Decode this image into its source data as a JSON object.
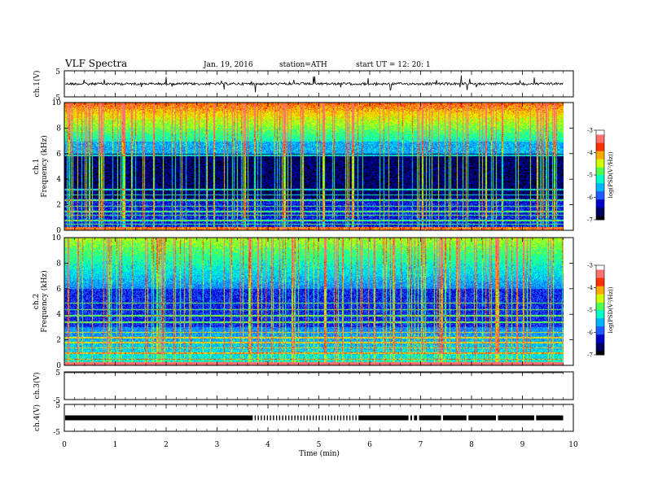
{
  "header": {
    "title": "VLF  Spectra",
    "date": "Jan. 19, 2016",
    "station": "station=ATH",
    "start": "start  UT  =    12: 20: 1"
  },
  "colors": {
    "palette": [
      "#000000",
      "#000060",
      "#0000c8",
      "#1e5aff",
      "#00b4ff",
      "#00ffc8",
      "#50ff50",
      "#d2ff00",
      "#ffaa00",
      "#ff3000",
      "#ff7070",
      "#ffffff"
    ]
  },
  "chart_data": [
    {
      "type": "line",
      "name": "ch1-waveform",
      "ylabel": "ch.1(V)",
      "ylim": [
        -5,
        5
      ],
      "y_ticks": [
        "5",
        "-5"
      ],
      "x_ticks": [
        "0",
        "1",
        "2",
        "3",
        "4",
        "5",
        "6",
        "7",
        "8",
        "9",
        "10"
      ],
      "xlim": [
        0,
        10
      ],
      "data_end_min": 9.8,
      "baseline_v": 0
    },
    {
      "type": "heatmap",
      "name": "ch1-spectrogram",
      "ylabel": "ch.1\nFrequency  (kHz)",
      "ylim": [
        0,
        10
      ],
      "y_ticks": [
        "0",
        "2",
        "4",
        "6",
        "8",
        "10"
      ],
      "xlim": [
        0,
        10
      ],
      "data_end_min": 9.8,
      "colorbar": {
        "label": "log(PSD(V²/Hz))",
        "range": [
          -7,
          -3
        ],
        "ticks": [
          "-3",
          "-4",
          "-5",
          "-6",
          "-7"
        ]
      }
    },
    {
      "type": "heatmap",
      "name": "ch2-spectrogram",
      "ylabel": "ch.2\nFrequency  (kHz)",
      "ylim": [
        0,
        10
      ],
      "y_ticks": [
        "0",
        "2",
        "4",
        "6",
        "8",
        "10"
      ],
      "xlim": [
        0,
        10
      ],
      "data_end_min": 9.8,
      "colorbar": {
        "label": "log(PSD(V²/Hz))",
        "range": [
          -7,
          -3
        ],
        "ticks": [
          "-3",
          "-4",
          "-5",
          "-6",
          "-7"
        ]
      }
    },
    {
      "type": "line",
      "name": "ch3-waveform",
      "ylabel": "ch.3(V)",
      "ylim": [
        -5,
        5
      ],
      "y_ticks": [
        "5",
        "-5"
      ],
      "xlim": [
        0,
        10
      ],
      "data_end_min": 9.8,
      "baseline_v": 5
    },
    {
      "type": "line",
      "name": "ch4-waveform",
      "ylabel": "ch.4(V)",
      "ylim": [
        -5,
        5
      ],
      "y_ticks": [
        "5",
        "-5"
      ],
      "xlim": [
        0,
        10
      ],
      "data_end_min": 9.8,
      "baseline_v": 0,
      "gaps_min": [
        3.72,
        3.78,
        3.84,
        3.9,
        3.96,
        4.02,
        4.08,
        4.14,
        4.2,
        4.26,
        4.32,
        4.38,
        4.44,
        4.5,
        4.56,
        4.62,
        4.68,
        4.74,
        4.8,
        4.86,
        4.92,
        4.98,
        5.04,
        5.1,
        5.16,
        5.22,
        5.28,
        5.34,
        5.4,
        5.46,
        5.52,
        5.58,
        5.64,
        5.7,
        5.76,
        6.78,
        6.85,
        6.95,
        7.42,
        7.92,
        8.5,
        9.25
      ]
    }
  ],
  "xaxis": {
    "label": "Time  (min)",
    "ticks": [
      "0",
      "1",
      "2",
      "3",
      "4",
      "5",
      "6",
      "7",
      "8",
      "9",
      "10"
    ]
  }
}
